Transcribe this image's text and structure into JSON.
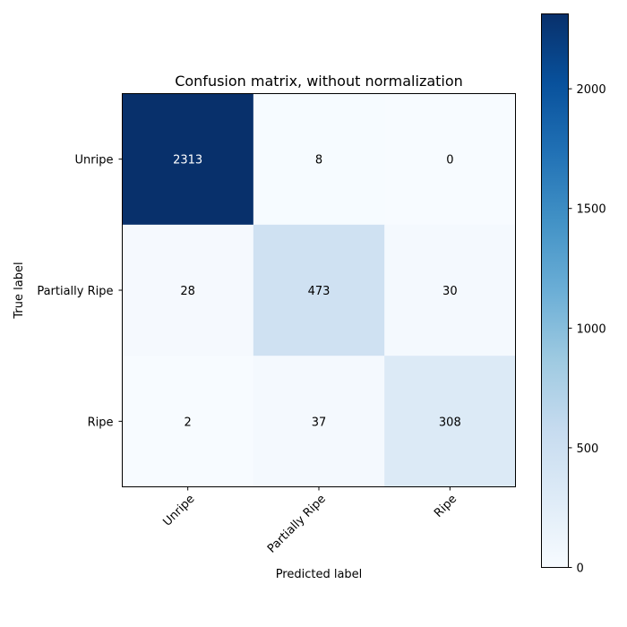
{
  "chart_data": {
    "type": "heatmap",
    "title": "Confusion matrix, without normalization",
    "xlabel": "Predicted label",
    "ylabel": "True label",
    "x_categories": [
      "Unripe",
      "Partially Ripe",
      "Ripe"
    ],
    "y_categories": [
      "Unripe",
      "Partially Ripe",
      "Ripe"
    ],
    "values": [
      [
        2313,
        8,
        0
      ],
      [
        28,
        473,
        30
      ],
      [
        2,
        37,
        308
      ]
    ],
    "colormap": "Blues",
    "colorbar": {
      "min": 0,
      "max": 2313,
      "ticks": [
        0,
        500,
        1000,
        1500,
        2000
      ]
    },
    "text_threshold": 1156.5,
    "colors": {
      "text_dark": "#000000",
      "text_light": "#ffffff"
    }
  }
}
